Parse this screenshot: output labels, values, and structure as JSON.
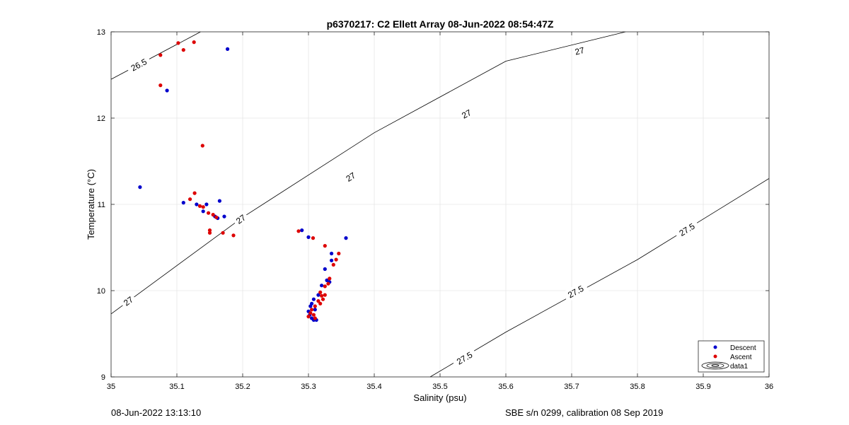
{
  "chart_data": {
    "type": "scatter",
    "title": "p6370217: C2 Ellett Array 08-Jun-2022 08:54:47Z",
    "xlabel": "Salinity (psu)",
    "ylabel": "Temperature (°C)",
    "xlim": [
      35,
      36
    ],
    "ylim": [
      9,
      13
    ],
    "xticks": [
      "35",
      "35.1",
      "35.2",
      "35.3",
      "35.4",
      "35.5",
      "35.6",
      "35.7",
      "35.8",
      "35.9",
      "36"
    ],
    "yticks": [
      "9",
      "10",
      "11",
      "12",
      "13"
    ],
    "grid": true,
    "legend": {
      "position": "bottom-right",
      "entries": [
        "Descent",
        "Ascent",
        "data1"
      ]
    },
    "series": [
      {
        "name": "Descent",
        "color": "#0000cc",
        "points": [
          [
            35.044,
            11.2
          ],
          [
            35.085,
            12.32
          ],
          [
            35.177,
            12.8
          ],
          [
            35.11,
            11.02
          ],
          [
            35.13,
            11.0
          ],
          [
            35.14,
            10.92
          ],
          [
            35.145,
            11.0
          ],
          [
            35.158,
            10.86
          ],
          [
            35.162,
            10.84
          ],
          [
            35.165,
            11.04
          ],
          [
            35.172,
            10.86
          ],
          [
            35.29,
            10.7
          ],
          [
            35.3,
            10.62
          ],
          [
            35.357,
            10.61
          ],
          [
            35.335,
            10.43
          ],
          [
            35.335,
            10.35
          ],
          [
            35.325,
            10.25
          ],
          [
            35.328,
            10.12
          ],
          [
            35.332,
            10.1
          ],
          [
            35.32,
            10.06
          ],
          [
            35.315,
            9.95
          ],
          [
            35.308,
            9.9
          ],
          [
            35.305,
            9.85
          ],
          [
            35.303,
            9.82
          ],
          [
            35.3,
            9.76
          ],
          [
            35.302,
            9.72
          ],
          [
            35.305,
            9.68
          ],
          [
            35.308,
            9.66
          ],
          [
            35.312,
            9.66
          ],
          [
            35.31,
            9.78
          ]
        ]
      },
      {
        "name": "Ascent",
        "color": "#dd0000",
        "points": [
          [
            35.102,
            12.87
          ],
          [
            35.126,
            12.88
          ],
          [
            35.075,
            12.73
          ],
          [
            35.11,
            12.79
          ],
          [
            35.075,
            12.38
          ],
          [
            35.139,
            11.68
          ],
          [
            35.127,
            11.13
          ],
          [
            35.12,
            11.06
          ],
          [
            35.135,
            10.98
          ],
          [
            35.14,
            10.97
          ],
          [
            35.148,
            10.9
          ],
          [
            35.155,
            10.88
          ],
          [
            35.16,
            10.85
          ],
          [
            35.15,
            10.7
          ],
          [
            35.15,
            10.67
          ],
          [
            35.17,
            10.67
          ],
          [
            35.186,
            10.64
          ],
          [
            35.285,
            10.69
          ],
          [
            35.307,
            10.61
          ],
          [
            35.325,
            10.52
          ],
          [
            35.346,
            10.43
          ],
          [
            35.342,
            10.36
          ],
          [
            35.338,
            10.3
          ],
          [
            35.332,
            10.14
          ],
          [
            35.33,
            10.08
          ],
          [
            35.325,
            10.05
          ],
          [
            35.318,
            9.98
          ],
          [
            35.32,
            9.94
          ],
          [
            35.322,
            9.9
          ],
          [
            35.315,
            9.88
          ],
          [
            35.318,
            9.85
          ],
          [
            35.31,
            9.82
          ],
          [
            35.305,
            9.78
          ],
          [
            35.303,
            9.74
          ],
          [
            35.308,
            9.72
          ],
          [
            35.31,
            9.68
          ],
          [
            35.3,
            9.7
          ],
          [
            35.325,
            9.95
          ]
        ]
      }
    ],
    "contours": [
      {
        "level": "26.5",
        "color": "#000000",
        "path": [
          [
            35.0,
            12.45
          ],
          [
            35.136,
            13.0
          ]
        ],
        "labels": [
          {
            "text": "26.5",
            "x": 35.042,
            "y": 12.62
          }
        ]
      },
      {
        "level": "27",
        "color": "#000000",
        "path": [
          [
            35.0,
            9.73
          ],
          [
            35.2,
            10.85
          ],
          [
            35.4,
            11.83
          ],
          [
            35.6,
            12.66
          ],
          [
            35.782,
            13.0
          ]
        ],
        "labels": [
          {
            "text": "27",
            "x": 35.026,
            "y": 9.88
          },
          {
            "text": "27",
            "x": 35.197,
            "y": 10.83
          },
          {
            "text": "27",
            "x": 35.364,
            "y": 11.32
          },
          {
            "text": "27",
            "x": 35.54,
            "y": 12.05
          },
          {
            "text": "27",
            "x": 35.712,
            "y": 12.78
          }
        ]
      },
      {
        "level": "27.5",
        "color": "#000000",
        "path": [
          [
            35.485,
            9.0
          ],
          [
            35.6,
            9.52
          ],
          [
            35.8,
            10.36
          ],
          [
            36.0,
            11.3
          ]
        ],
        "labels": [
          {
            "text": "27.5",
            "x": 35.537,
            "y": 9.22
          },
          {
            "text": "27.5",
            "x": 35.706,
            "y": 9.99
          },
          {
            "text": "27.5",
            "x": 35.875,
            "y": 10.71
          }
        ]
      }
    ]
  },
  "footer": {
    "left": "08-Jun-2022 13:13:10",
    "right": "SBE s/n 0299, calibration 08 Sep 2019"
  }
}
